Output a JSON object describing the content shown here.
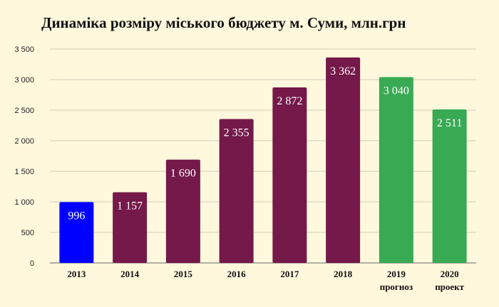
{
  "chart_data": {
    "type": "bar",
    "title": "Динаміка розміру міського бюджету м. Суми, млн.грн",
    "categories": [
      "2013",
      "2014",
      "2015",
      "2016",
      "2017",
      "2018",
      "2019",
      "2020"
    ],
    "category_sublabels": [
      "",
      "",
      "",
      "",
      "",
      "",
      "прогноз",
      "проект"
    ],
    "values": [
      996,
      1157,
      1690,
      2355,
      2872,
      3362,
      3040,
      2511
    ],
    "value_labels": [
      "996",
      "1 157",
      "1 690",
      "2 355",
      "2 872",
      "3 362",
      "3 040",
      "2 511"
    ],
    "bar_colors": [
      "#0000FF",
      "#74194A",
      "#74194A",
      "#74194A",
      "#74194A",
      "#74194A",
      "#39AA54",
      "#39AA54"
    ],
    "ylim": [
      0,
      3500
    ],
    "yticks": [
      0,
      500,
      1000,
      1500,
      2000,
      2500,
      3000,
      3500
    ],
    "ytick_labels": [
      "0",
      "500",
      "1 000",
      "1 500",
      "2 000",
      "2 500",
      "3 000",
      "3 500"
    ],
    "xlabel": "",
    "ylabel": "",
    "grid": true,
    "legend": "none"
  }
}
